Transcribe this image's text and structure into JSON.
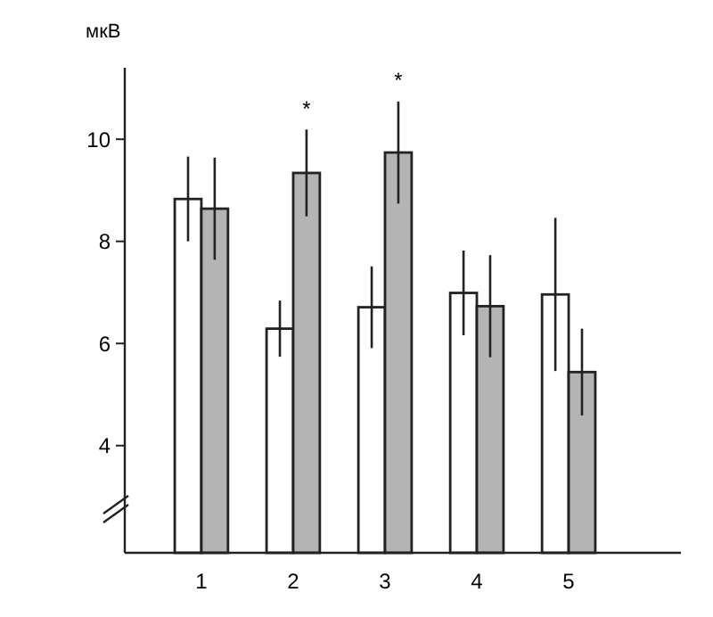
{
  "chart_data": {
    "type": "bar",
    "ylabel": "мкВ",
    "categories": [
      "1",
      "2",
      "3",
      "4",
      "5"
    ],
    "series": [
      {
        "color": "#ffffff",
        "values": [
          8.83,
          6.29,
          6.71,
          6.99,
          6.96
        ],
        "errors": [
          0.83,
          0.55,
          0.8,
          0.83,
          1.5
        ]
      },
      {
        "color": "#b4b4b4",
        "values": [
          8.64,
          9.34,
          9.74,
          6.73,
          5.44
        ],
        "errors": [
          1.0,
          0.85,
          1.0,
          1.0,
          0.85
        ]
      }
    ],
    "ylim": [
      1.9,
      11.4
    ],
    "yticks": [
      4,
      6,
      8,
      10
    ],
    "grid": false,
    "annotations": [
      "*",
      "*"
    ]
  }
}
